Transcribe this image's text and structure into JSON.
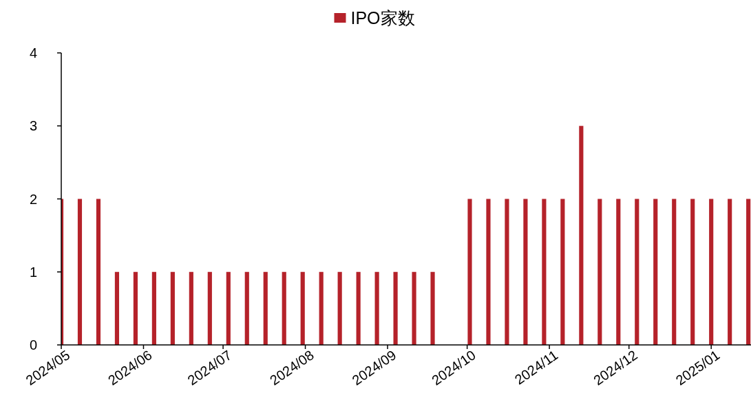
{
  "chart_data": {
    "type": "bar",
    "x": [
      "2024-05-01",
      "2024-05-08",
      "2024-05-15",
      "2024-05-22",
      "2024-05-29",
      "2024-06-05",
      "2024-06-12",
      "2024-06-19",
      "2024-06-26",
      "2024-07-03",
      "2024-07-10",
      "2024-07-17",
      "2024-07-24",
      "2024-07-31",
      "2024-08-07",
      "2024-08-14",
      "2024-08-21",
      "2024-08-28",
      "2024-09-04",
      "2024-09-11",
      "2024-09-18",
      "2024-10-02",
      "2024-10-09",
      "2024-10-16",
      "2024-10-23",
      "2024-10-30",
      "2024-11-06",
      "2024-11-13",
      "2024-11-20",
      "2024-11-27",
      "2024-12-04",
      "2024-12-11",
      "2024-12-18",
      "2024-12-25",
      "2025-01-01",
      "2025-01-08",
      "2025-01-15"
    ],
    "series": [
      {
        "name": "IPO家数",
        "color": "#b5222a",
        "values": [
          2,
          2,
          2,
          1,
          1,
          1,
          1,
          1,
          1,
          1,
          1,
          1,
          1,
          1,
          1,
          1,
          1,
          1,
          1,
          1,
          1,
          2,
          2,
          2,
          2,
          2,
          2,
          3,
          2,
          2,
          2,
          2,
          2,
          2,
          2,
          2,
          2
        ]
      }
    ],
    "xlim": [
      "2024-05-01",
      "2025-01-16"
    ],
    "xticks": [
      {
        "value": "2024-05-01",
        "label": "2024/05"
      },
      {
        "value": "2024-06-01",
        "label": "2024/06"
      },
      {
        "value": "2024-07-01",
        "label": "2024/07"
      },
      {
        "value": "2024-08-01",
        "label": "2024/08"
      },
      {
        "value": "2024-09-01",
        "label": "2024/09"
      },
      {
        "value": "2024-10-01",
        "label": "2024/10"
      },
      {
        "value": "2024-11-01",
        "label": "2024/11"
      },
      {
        "value": "2024-12-01",
        "label": "2024/12"
      },
      {
        "value": "2025-01-01",
        "label": "2025/01"
      }
    ],
    "ylim": [
      0,
      4
    ],
    "yticks": [
      0,
      1,
      2,
      3,
      4
    ],
    "grid": false,
    "legend": "top"
  }
}
